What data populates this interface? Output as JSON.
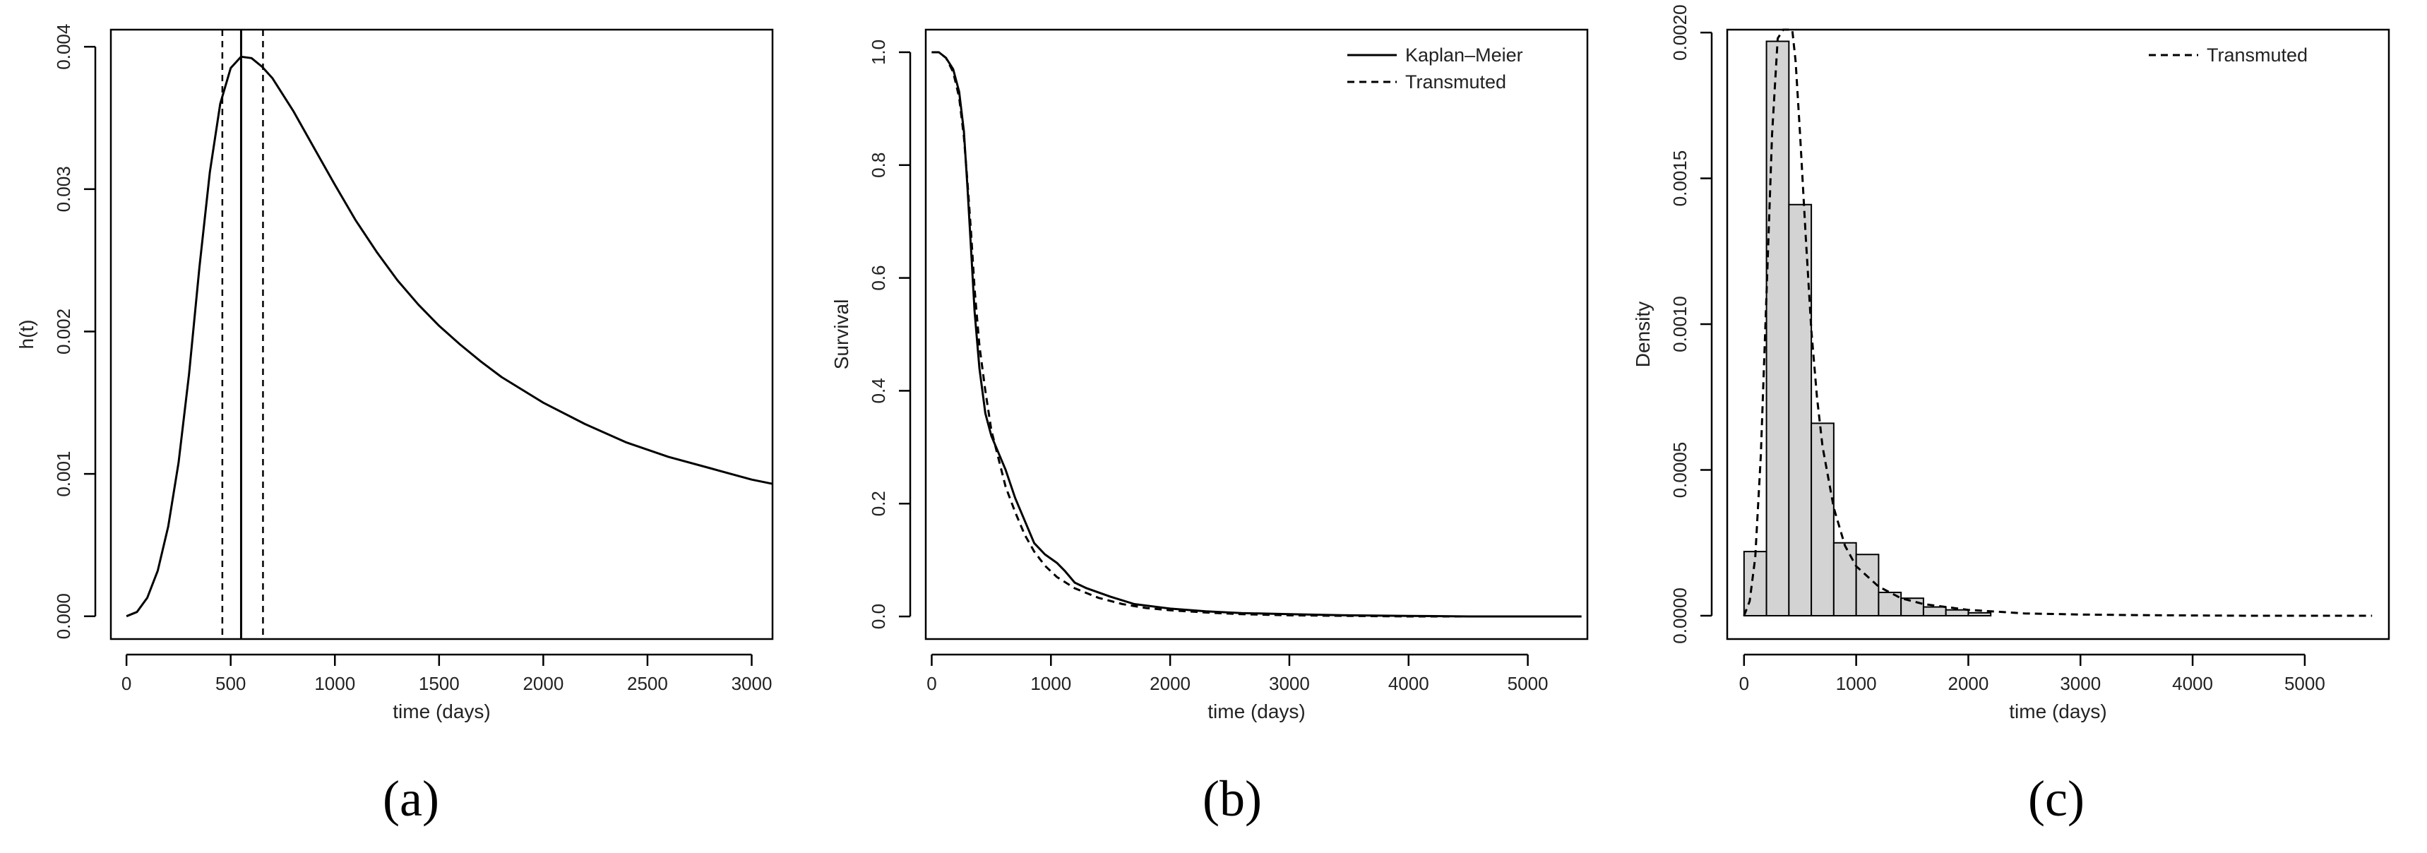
{
  "panel_labels": [
    "(a)",
    "(b)",
    "(c)"
  ],
  "chart_data": [
    {
      "type": "line",
      "xlabel": "time (days)",
      "ylabel": "h(t)",
      "xlim": [
        -75,
        3100
      ],
      "ylim": [
        -0.00016,
        0.00412
      ],
      "xticks": [
        0,
        500,
        1000,
        1500,
        2000,
        2500,
        3000
      ],
      "yticks": [
        0.0,
        0.001,
        0.002,
        0.003,
        0.004
      ],
      "ytick_labels": [
        "0.000",
        "0.001",
        "0.002",
        "0.003",
        "0.004"
      ],
      "series": [
        {
          "style": "solid",
          "x": [
            0,
            50,
            100,
            150,
            200,
            250,
            300,
            350,
            400,
            450,
            500,
            550,
            600,
            650,
            700,
            800,
            900,
            1000,
            1100,
            1200,
            1300,
            1400,
            1500,
            1600,
            1700,
            1800,
            2000,
            2200,
            2400,
            2600,
            2800,
            3000,
            3100
          ],
          "y": [
            0.0,
            3e-05,
            0.00013,
            0.00032,
            0.00063,
            0.00108,
            0.0017,
            0.00245,
            0.00312,
            0.0036,
            0.00385,
            0.00393,
            0.00392,
            0.00386,
            0.00378,
            0.00355,
            0.00329,
            0.00303,
            0.00278,
            0.00256,
            0.00236,
            0.00219,
            0.00204,
            0.00191,
            0.00179,
            0.00168,
            0.0015,
            0.00135,
            0.00122,
            0.00112,
            0.00104,
            0.00096,
            0.00093
          ]
        }
      ],
      "vlines": [
        {
          "x": 460,
          "style": "dashed"
        },
        {
          "x": 550,
          "style": "solid"
        },
        {
          "x": 655,
          "style": "dashed"
        }
      ]
    },
    {
      "type": "line",
      "xlabel": "time (days)",
      "ylabel": "Survival",
      "xlim": [
        -50,
        5500
      ],
      "ylim": [
        -0.04,
        1.04
      ],
      "xticks": [
        0,
        1000,
        2000,
        3000,
        4000,
        5000
      ],
      "yticks": [
        0.0,
        0.2,
        0.4,
        0.6,
        0.8,
        1.0
      ],
      "ytick_labels": [
        "0.0",
        "0.2",
        "0.4",
        "0.6",
        "0.8",
        "1.0"
      ],
      "legend": {
        "position": "top-right",
        "entries": [
          {
            "label": "Kaplan–Meier",
            "style": "solid"
          },
          {
            "label": "Transmuted",
            "style": "dashed"
          }
        ]
      },
      "series": [
        {
          "name": "Kaplan–Meier",
          "style": "solid",
          "x": [
            0,
            60,
            120,
            180,
            230,
            270,
            300,
            330,
            360,
            400,
            450,
            500,
            560,
            620,
            700,
            780,
            860,
            950,
            1050,
            1120,
            1200,
            1300,
            1500,
            1700,
            2000,
            2300,
            2600,
            3000,
            3500,
            4000,
            4500,
            5000,
            5450
          ],
          "y": [
            1.0,
            1.0,
            0.99,
            0.97,
            0.93,
            0.86,
            0.76,
            0.65,
            0.54,
            0.44,
            0.36,
            0.32,
            0.29,
            0.26,
            0.21,
            0.17,
            0.13,
            0.11,
            0.095,
            0.08,
            0.06,
            0.05,
            0.035,
            0.022,
            0.014,
            0.009,
            0.006,
            0.004,
            0.002,
            0.001,
            0.0,
            0.0,
            0.0
          ]
        },
        {
          "name": "Transmuted",
          "style": "dashed",
          "x": [
            0,
            60,
            120,
            180,
            230,
            270,
            300,
            330,
            360,
            400,
            450,
            500,
            560,
            620,
            700,
            780,
            860,
            950,
            1050,
            1200,
            1400,
            1600,
            1800,
            2000,
            2300,
            2600,
            3000,
            3500,
            4000,
            4500,
            5000,
            5450
          ],
          "y": [
            1.0,
            1.0,
            0.99,
            0.965,
            0.92,
            0.85,
            0.77,
            0.68,
            0.58,
            0.48,
            0.4,
            0.33,
            0.28,
            0.23,
            0.185,
            0.145,
            0.115,
            0.09,
            0.07,
            0.05,
            0.033,
            0.022,
            0.015,
            0.011,
            0.007,
            0.004,
            0.002,
            0.001,
            0.0,
            0.0,
            0.0,
            0.0
          ]
        }
      ]
    },
    {
      "type": "bar",
      "xlabel": "time (days)",
      "ylabel": "Density",
      "xlim": [
        -150,
        5750
      ],
      "ylim": [
        -8e-05,
        0.00201
      ],
      "xticks": [
        0,
        1000,
        2000,
        3000,
        4000,
        5000
      ],
      "yticks": [
        0.0,
        0.0005,
        0.001,
        0.0015,
        0.002
      ],
      "ytick_labels": [
        "0.0000",
        "0.0005",
        "0.0010",
        "0.0015",
        "0.0020"
      ],
      "legend": {
        "position": "top-right",
        "entries": [
          {
            "label": "Transmuted",
            "style": "dashed"
          }
        ]
      },
      "bins": {
        "edges": [
          0,
          200,
          400,
          600,
          800,
          1000,
          1200,
          1400,
          1600,
          1800,
          2000,
          2200
        ],
        "values": [
          0.00022,
          0.00197,
          0.00141,
          0.00066,
          0.00025,
          0.00021,
          8e-05,
          6e-05,
          3e-05,
          2e-05,
          1e-05
        ]
      },
      "series": [
        {
          "name": "Transmuted",
          "style": "dashed",
          "x": [
            0,
            50,
            100,
            150,
            200,
            250,
            300,
            350,
            380,
            400,
            430,
            460,
            500,
            550,
            600,
            650,
            700,
            800,
            900,
            1000,
            1200,
            1400,
            1600,
            1800,
            2000,
            2500,
            3000,
            3500,
            4000,
            4500,
            5000,
            5600
          ],
          "y": [
            0.0,
            5e-05,
            0.0002,
            0.00055,
            0.0011,
            0.00165,
            0.00198,
            0.00212,
            0.00215,
            0.00214,
            0.00205,
            0.0019,
            0.00165,
            0.0013,
            0.00098,
            0.00075,
            0.00058,
            0.00037,
            0.00024,
            0.00017,
            0.0001,
            6e-05,
            4e-05,
            3e-05,
            2e-05,
            8e-06,
            4e-06,
            2e-06,
            1e-06,
            0.0,
            0.0,
            0.0
          ]
        }
      ]
    }
  ]
}
